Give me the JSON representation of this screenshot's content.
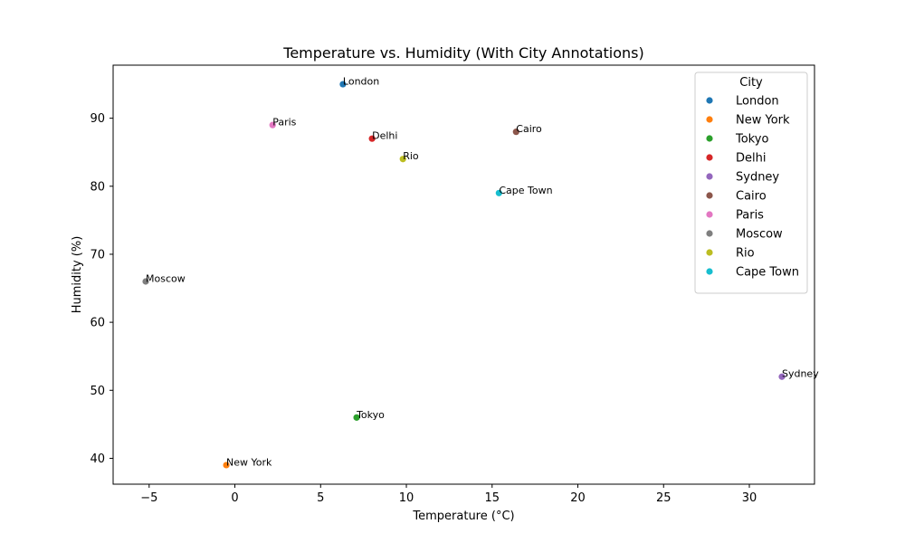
{
  "chart_data": {
    "type": "scatter",
    "title": "Temperature vs. Humidity (With City Annotations)",
    "xlabel": "Temperature (°C)",
    "ylabel": "Humidity (%)",
    "xlim": [
      -7.1,
      33.8
    ],
    "ylim": [
      36.2,
      97.8
    ],
    "xticks": [
      -5,
      0,
      5,
      10,
      15,
      20,
      25,
      30
    ],
    "yticks": [
      40,
      50,
      60,
      70,
      80,
      90
    ],
    "grid": false,
    "legend": {
      "title": "City",
      "placement": "top-right"
    },
    "series": [
      {
        "name": "London",
        "color": "#1f77b4",
        "x": 6.3,
        "y": 95
      },
      {
        "name": "New York",
        "color": "#ff7f0e",
        "x": -0.5,
        "y": 39
      },
      {
        "name": "Tokyo",
        "color": "#2ca02c",
        "x": 7.1,
        "y": 46
      },
      {
        "name": "Delhi",
        "color": "#d62728",
        "x": 8.0,
        "y": 87
      },
      {
        "name": "Sydney",
        "color": "#9467bd",
        "x": 31.9,
        "y": 52
      },
      {
        "name": "Cairo",
        "color": "#8c564b",
        "x": 16.4,
        "y": 88
      },
      {
        "name": "Paris",
        "color": "#e377c2",
        "x": 2.2,
        "y": 89
      },
      {
        "name": "Moscow",
        "color": "#7f7f7f",
        "x": -5.2,
        "y": 66
      },
      {
        "name": "Rio",
        "color": "#bcbd22",
        "x": 9.8,
        "y": 84
      },
      {
        "name": "Cape Town",
        "color": "#17becf",
        "x": 15.4,
        "y": 79
      }
    ]
  }
}
